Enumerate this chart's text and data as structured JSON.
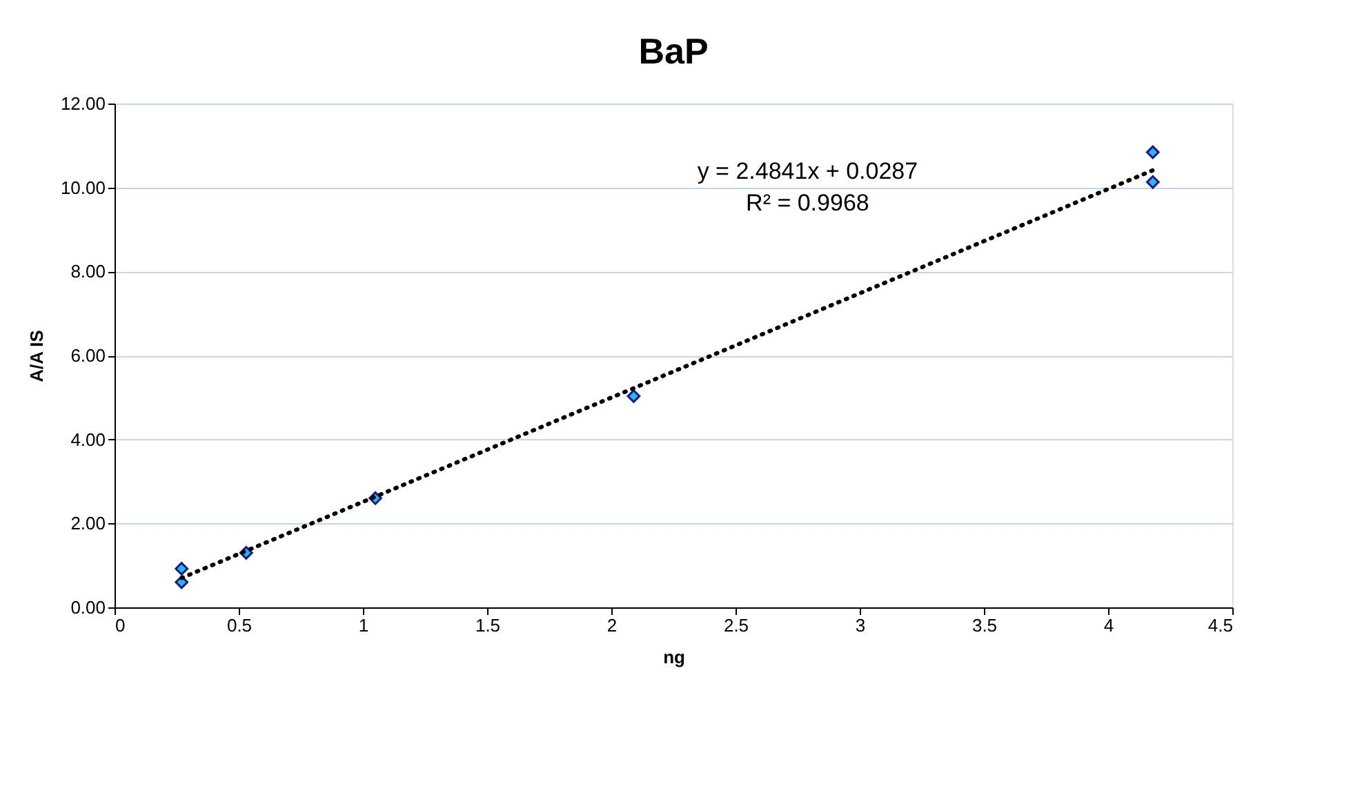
{
  "chart_data": {
    "type": "scatter",
    "title": "BaP",
    "xlabel": "ng",
    "ylabel": "A/A IS",
    "series": [
      {
        "color": "#29b6f0",
        "x": [
          0.27,
          0.27,
          0.53,
          1.05,
          2.09,
          4.18,
          4.18
        ],
        "values": [
          0.92,
          0.6,
          1.3,
          2.6,
          5.03,
          10.84,
          10.13
        ]
      },
      {
        "type": "line",
        "color": "#000000",
        "line_style": "dotted",
        "marker": "none",
        "x": [
          0.27,
          4.18
        ],
        "values": [
          0.7,
          10.41
        ]
      }
    ],
    "annotations": [
      "y = 2.4841x + 0.0287",
      "R² = 0.9968"
    ],
    "marker": "diamond",
    "xlim": [
      0,
      4.5
    ],
    "xticks": [
      0,
      0.5,
      1,
      1.5,
      2,
      2.5,
      3,
      3.5,
      4,
      4.5
    ],
    "ylim": [
      0,
      12
    ],
    "yticks": [
      {
        "value": 0,
        "label": "0.00"
      },
      {
        "value": 2,
        "label": "2.00"
      },
      {
        "value": 4,
        "label": "4.00"
      },
      {
        "value": 6,
        "label": "6.00"
      },
      {
        "value": 8,
        "label": "8.00"
      },
      {
        "value": 10,
        "label": "10.00"
      },
      {
        "value": 12,
        "label": "12.00"
      }
    ],
    "grid": "y"
  }
}
